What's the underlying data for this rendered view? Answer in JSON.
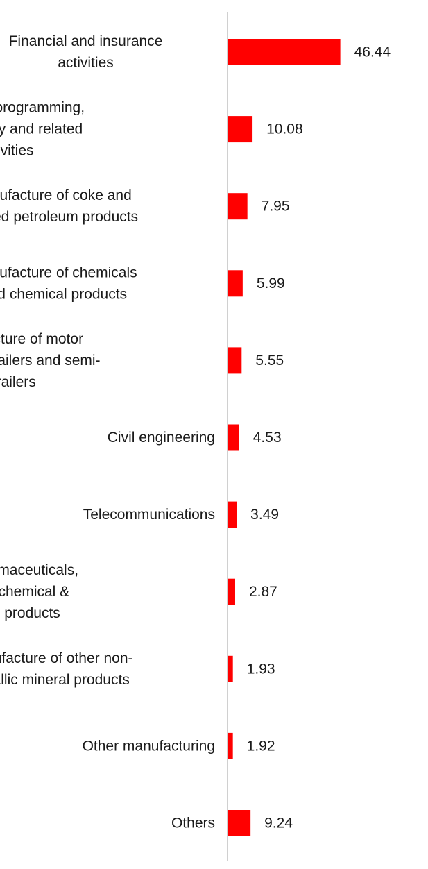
{
  "chart_data": {
    "type": "bar",
    "orientation": "horizontal",
    "categories": [
      [
        "Financial and insurance",
        "activities"
      ],
      [
        "Computer programming,",
        "consultancy and related",
        "activities"
      ],
      [
        "Manufacture of coke and",
        "refined petroleum products"
      ],
      [
        "Manufacture of chemicals",
        "and chemical products"
      ],
      [
        "Manufacture of motor",
        "vehicles, trailers and semi-",
        "trailers"
      ],
      [
        "Civil engineering"
      ],
      [
        "Telecommunications"
      ],
      [
        "Mfg of pharmaceuticals,",
        "medicinal chemical &",
        "botanical products"
      ],
      [
        "Manufacture of other non-",
        "metallic mineral products"
      ],
      [
        "Other manufacturing"
      ],
      [
        "Others"
      ]
    ],
    "values": [
      46.44,
      10.08,
      7.95,
      5.99,
      5.55,
      4.53,
      3.49,
      2.87,
      1.93,
      1.92,
      9.24
    ],
    "value_labels": [
      "46.44",
      "10.08",
      "7.95",
      "5.99",
      "5.55",
      "4.53",
      "3.49",
      "2.87",
      "1.93",
      "1.92",
      "9.24"
    ],
    "xlim": [
      0,
      100
    ],
    "grid": false,
    "legend": "none",
    "colors": {
      "bar": "#ff0000",
      "axis": "#d0d0d0",
      "text": "#1a1a1a"
    }
  }
}
